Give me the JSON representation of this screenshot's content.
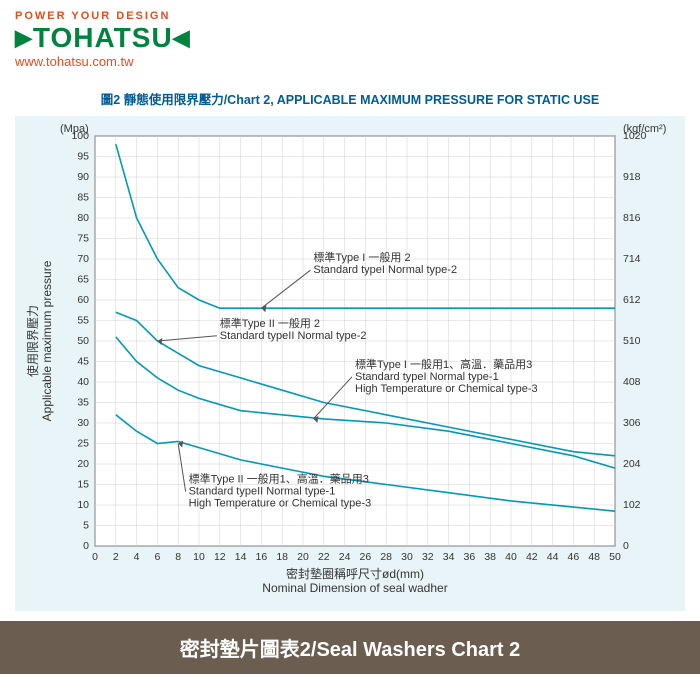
{
  "header": {
    "tagline_color": "#e84c1a",
    "tagline": "POWER YOUR DESIGN",
    "logo_arrow": "▶",
    "logo": "TOHATSU",
    "logo_arrow_end": "◀",
    "logo_color": "#00833e",
    "url": "www.tohatsu.com.tw",
    "url_color": "#e84c1a"
  },
  "chart": {
    "title": "圖2 靜態使用限界壓力/Chart 2, APPLICABLE MAXIMUM PRESSURE FOR STATIC USE",
    "title_color": "#005c97",
    "bg_color": "#e8f4f7",
    "plot_bg": "#ffffff",
    "grid_color": "#d0d0d0",
    "axis_color": "#333333",
    "line_color": "#0099bb",
    "annotation_arrow_color": "#555555",
    "annotation_text_color": "#333333",
    "x": {
      "label": "密封墊圈稱呼尺寸ød(mm)\nNominal Dimension of seal wadher",
      "min": 0,
      "max": 50,
      "step": 2
    },
    "y_left": {
      "unit": "(Mpa)",
      "label": "使用限界壓力\nApplicable maximum pressure",
      "min": 0,
      "max": 100,
      "step": 5
    },
    "y_right": {
      "unit": "(kgf/cm²)",
      "min": 0,
      "max": 1020,
      "step": 102
    },
    "series": [
      {
        "name": "curve1",
        "data": [
          [
            2,
            98
          ],
          [
            4,
            80
          ],
          [
            6,
            70
          ],
          [
            8,
            63
          ],
          [
            10,
            60
          ],
          [
            12,
            58
          ],
          [
            16,
            58
          ],
          [
            50,
            58
          ]
        ]
      },
      {
        "name": "curve2",
        "data": [
          [
            2,
            57
          ],
          [
            4,
            55
          ],
          [
            6,
            50
          ],
          [
            8,
            47
          ],
          [
            10,
            44
          ],
          [
            14,
            41
          ],
          [
            18,
            38
          ],
          [
            22,
            35
          ],
          [
            28,
            32
          ],
          [
            34,
            29
          ],
          [
            40,
            26
          ],
          [
            46,
            23
          ],
          [
            50,
            22
          ]
        ]
      },
      {
        "name": "curve3",
        "data": [
          [
            2,
            51
          ],
          [
            4,
            45
          ],
          [
            6,
            41
          ],
          [
            8,
            38
          ],
          [
            10,
            36
          ],
          [
            14,
            33
          ],
          [
            18,
            32
          ],
          [
            22,
            31
          ],
          [
            28,
            30
          ],
          [
            34,
            28
          ],
          [
            40,
            25
          ],
          [
            46,
            22
          ],
          [
            50,
            19
          ]
        ]
      },
      {
        "name": "curve4",
        "data": [
          [
            2,
            32
          ],
          [
            4,
            28
          ],
          [
            6,
            25
          ],
          [
            8,
            25.5
          ],
          [
            10,
            24
          ],
          [
            14,
            21
          ],
          [
            18,
            19
          ],
          [
            22,
            17
          ],
          [
            28,
            15
          ],
          [
            34,
            13
          ],
          [
            40,
            11
          ],
          [
            46,
            9.5
          ],
          [
            50,
            8.5
          ]
        ]
      }
    ],
    "annotations": [
      {
        "key": "a1",
        "text_zh": "標準Type I 一般用 2",
        "text_en": "Standard typeI Normal type-2",
        "tx": 21,
        "ty": 68,
        "ax": 16,
        "ay": 58
      },
      {
        "key": "a2",
        "text_zh": "標準Type II 一般用 2",
        "text_en": "Standard typeII Normal type-2",
        "tx": 12,
        "ty": 52,
        "ax": 6,
        "ay": 50
      },
      {
        "key": "a3",
        "text_zh": "標準Type I 一般用1、高溫．藥品用3",
        "text_en": "Standard typeI Normal type-1\nHigh Temperature or Chemical type-3",
        "tx": 25,
        "ty": 42,
        "ax": 21,
        "ay": 31
      },
      {
        "key": "a4",
        "text_zh": "標準Type II 一般用1、高溫．藥品用3",
        "text_en": "Standard typeII Normal type-1\nHigh Temperature or Chemical type-3",
        "tx": 9,
        "ty": 14,
        "ax": 8,
        "ay": 25
      }
    ]
  },
  "footer": {
    "text": "密封墊片圖表2/Seal Washers Chart 2",
    "bg": "#6b5d4f",
    "color": "#ffffff"
  }
}
